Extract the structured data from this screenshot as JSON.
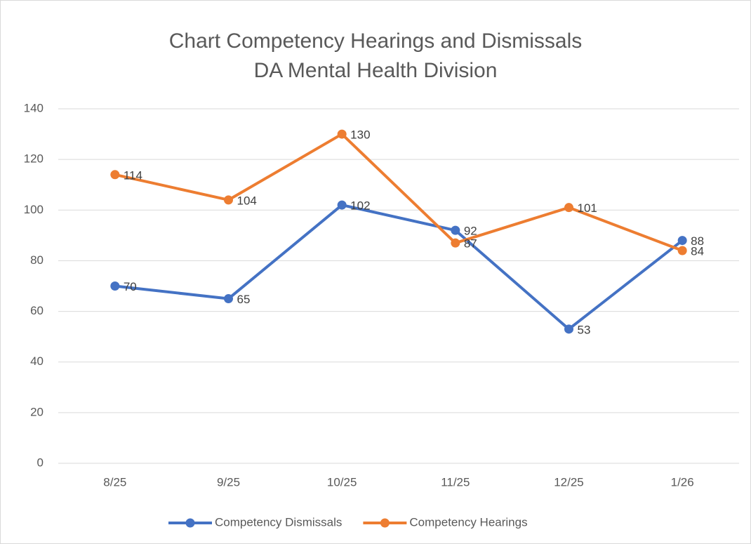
{
  "chart_data": {
    "type": "line",
    "title": [
      "Chart Competency Hearings and Dismissals",
      "DA Mental Health Division"
    ],
    "categories": [
      "8/25",
      "9/25",
      "10/25",
      "11/25",
      "12/25",
      "1/26"
    ],
    "series": [
      {
        "name": "Competency Dismissals",
        "color": "#4472c4",
        "values": [
          70,
          65,
          102,
          92,
          53,
          88
        ]
      },
      {
        "name": "Competency Hearings",
        "color": "#ed7d31",
        "values": [
          114,
          104,
          130,
          87,
          101,
          84
        ]
      }
    ],
    "ylim": [
      0,
      140
    ],
    "yticks": [
      0,
      20,
      40,
      60,
      80,
      100,
      120,
      140
    ],
    "grid": true,
    "legend": "bottom",
    "data_labels": true
  }
}
